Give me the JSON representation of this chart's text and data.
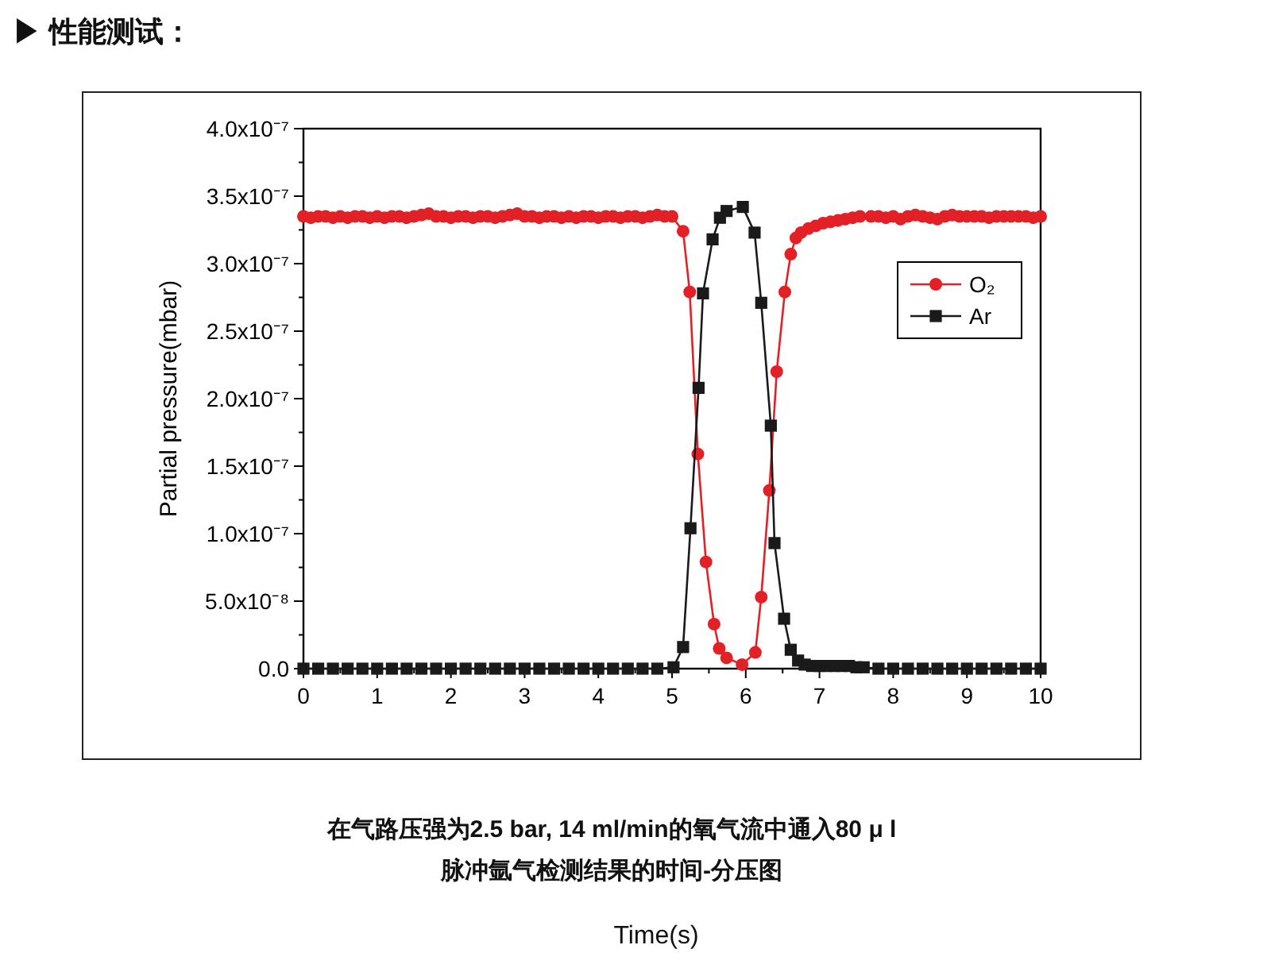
{
  "chart_data": {
    "type": "line",
    "title": "▶ 性能测试：",
    "ylabel": "Partial pressure(mbar)",
    "annotations": [
      "在气路压强为2.5 bar, 14 ml/min的氧气流中通入80 μ l",
      "脉冲氩气检测结果的时间-分压图",
      "Time(s)"
    ],
    "xlim": [
      0,
      10
    ],
    "xticks": [
      0,
      1,
      2,
      3,
      4,
      5,
      6,
      7,
      8,
      9,
      10
    ],
    "ylim": [
      0,
      4e-07
    ],
    "yticks": [
      {
        "value": 0,
        "label": "0.0"
      },
      {
        "value": 5e-08,
        "label": "5.0x10⁻⁸"
      },
      {
        "value": 1e-07,
        "label": "1.0x10⁻⁷"
      },
      {
        "value": 1.5e-07,
        "label": "1.5x10⁻⁷"
      },
      {
        "value": 2e-07,
        "label": "2.0x10⁻⁷"
      },
      {
        "value": 2.5e-07,
        "label": "2.5x10⁻⁷"
      },
      {
        "value": 3e-07,
        "label": "3.0x10⁻⁷"
      },
      {
        "value": 3.5e-07,
        "label": "3.5x10⁻⁷"
      },
      {
        "value": 4e-07,
        "label": "4.0x10⁻⁷"
      }
    ],
    "grid": false,
    "legend": "top right",
    "line_style": "solid",
    "series": [
      {
        "name": "O₂",
        "color": "#e32026",
        "marker": "circle",
        "x": [
          0,
          0.1,
          0.2,
          0.3,
          0.4,
          0.5,
          0.6,
          0.7,
          0.8,
          0.9,
          1.0,
          1.1,
          1.2,
          1.3,
          1.4,
          1.5,
          1.6,
          1.7,
          1.8,
          1.9,
          2.0,
          2.1,
          2.2,
          2.3,
          2.4,
          2.5,
          2.6,
          2.7,
          2.8,
          2.9,
          3.0,
          3.1,
          3.2,
          3.3,
          3.4,
          3.5,
          3.6,
          3.7,
          3.8,
          3.9,
          4.0,
          4.1,
          4.2,
          4.3,
          4.4,
          4.5,
          4.6,
          4.7,
          4.8,
          4.9,
          5.0,
          5.15,
          5.24,
          5.35,
          5.46,
          5.57,
          5.64,
          5.74,
          5.95,
          6.13,
          6.21,
          6.32,
          6.42,
          6.53,
          6.61,
          6.68,
          6.75,
          6.85,
          6.95,
          7.05,
          7.15,
          7.25,
          7.35,
          7.45,
          7.55,
          7.7,
          7.8,
          7.9,
          8.0,
          8.1,
          8.2,
          8.3,
          8.4,
          8.5,
          8.6,
          8.7,
          8.8,
          8.9,
          9.0,
          9.1,
          9.2,
          9.3,
          9.4,
          9.5,
          9.6,
          9.7,
          9.8,
          9.9,
          10.0
        ],
        "values": [
          3.35e-07,
          3.34e-07,
          3.35e-07,
          3.35e-07,
          3.34e-07,
          3.35e-07,
          3.34e-07,
          3.35e-07,
          3.35e-07,
          3.34e-07,
          3.35e-07,
          3.34e-07,
          3.35e-07,
          3.35e-07,
          3.34e-07,
          3.35e-07,
          3.36e-07,
          3.37e-07,
          3.35e-07,
          3.35e-07,
          3.34e-07,
          3.35e-07,
          3.35e-07,
          3.34e-07,
          3.35e-07,
          3.35e-07,
          3.34e-07,
          3.35e-07,
          3.36e-07,
          3.37e-07,
          3.35e-07,
          3.35e-07,
          3.34e-07,
          3.35e-07,
          3.35e-07,
          3.34e-07,
          3.35e-07,
          3.34e-07,
          3.35e-07,
          3.35e-07,
          3.34e-07,
          3.35e-07,
          3.35e-07,
          3.34e-07,
          3.35e-07,
          3.35e-07,
          3.34e-07,
          3.35e-07,
          3.36e-07,
          3.35e-07,
          3.35e-07,
          3.24e-07,
          2.79e-07,
          1.59e-07,
          7.9e-08,
          3.3e-08,
          1.5e-08,
          8e-09,
          3e-09,
          1.2e-08,
          5.3e-08,
          1.32e-07,
          2.2e-07,
          2.79e-07,
          3.07e-07,
          3.19e-07,
          3.23e-07,
          3.26e-07,
          3.28e-07,
          3.3e-07,
          3.31e-07,
          3.32e-07,
          3.33e-07,
          3.34e-07,
          3.35e-07,
          3.35e-07,
          3.35e-07,
          3.34e-07,
          3.35e-07,
          3.33e-07,
          3.35e-07,
          3.36e-07,
          3.35e-07,
          3.34e-07,
          3.33e-07,
          3.35e-07,
          3.36e-07,
          3.35e-07,
          3.35e-07,
          3.35e-07,
          3.35e-07,
          3.34e-07,
          3.35e-07,
          3.35e-07,
          3.35e-07,
          3.35e-07,
          3.35e-07,
          3.34e-07,
          3.35e-07
        ]
      },
      {
        "name": "Ar",
        "color": "#1a1a1a",
        "marker": "square",
        "x": [
          0,
          0.2,
          0.4,
          0.6,
          0.8,
          1.0,
          1.2,
          1.4,
          1.6,
          1.8,
          2.0,
          2.2,
          2.4,
          2.6,
          2.8,
          3.0,
          3.2,
          3.4,
          3.6,
          3.8,
          4.0,
          4.2,
          4.4,
          4.6,
          4.8,
          5.02,
          5.15,
          5.25,
          5.36,
          5.42,
          5.55,
          5.65,
          5.74,
          5.96,
          6.12,
          6.21,
          6.34,
          6.39,
          6.52,
          6.61,
          6.71,
          6.8,
          6.9,
          7.0,
          7.1,
          7.2,
          7.3,
          7.4,
          7.5,
          7.6,
          7.8,
          8.0,
          8.2,
          8.4,
          8.6,
          8.8,
          9.0,
          9.2,
          9.4,
          9.6,
          9.8,
          10.0
        ],
        "values": [
          0,
          0,
          0,
          0,
          0,
          0,
          0,
          0,
          0,
          0,
          0,
          0,
          0,
          0,
          0,
          0,
          0,
          0,
          0,
          0,
          0,
          0,
          0,
          0,
          0,
          1e-09,
          1.6e-08,
          1.04e-07,
          2.08e-07,
          2.78e-07,
          3.18e-07,
          3.34e-07,
          3.39e-07,
          3.42e-07,
          3.23e-07,
          2.71e-07,
          1.8e-07,
          9.3e-08,
          3.7e-08,
          1.4e-08,
          6e-09,
          3e-09,
          2e-09,
          2e-09,
          2e-09,
          2e-09,
          2e-09,
          2e-09,
          1e-09,
          1e-09,
          0,
          0,
          0,
          0,
          0,
          0,
          0,
          0,
          0,
          0,
          0,
          0
        ]
      }
    ]
  }
}
